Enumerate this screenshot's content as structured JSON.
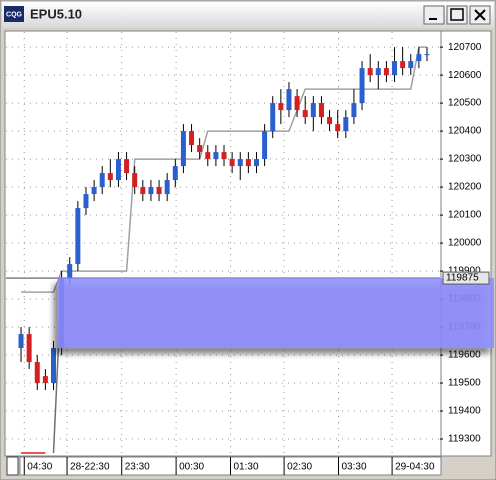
{
  "window": {
    "icon": "CQG"
  },
  "chart_data": {
    "type": "candlestick",
    "title": "EPU5.10",
    "up_color": "#2a5fd0",
    "down_color": "#d42020",
    "open": [
      119625,
      119675,
      119575,
      119525,
      119500,
      119625,
      119875,
      119925,
      120125,
      120175,
      120200,
      120250,
      120225,
      120300,
      120250,
      120200,
      120175,
      120200,
      120175,
      120225,
      120275,
      120400,
      120350,
      120325,
      120300,
      120325,
      120300,
      120275,
      120300,
      120275,
      120300,
      120400,
      120500,
      120475,
      120525,
      120475,
      120450,
      120500,
      120450,
      120425,
      120400,
      120450,
      120500,
      120625,
      120600,
      120625,
      120600,
      120650,
      120625,
      120650,
      120675
    ],
    "high": [
      119700,
      119700,
      119600,
      119550,
      119650,
      119900,
      119950,
      120150,
      120200,
      120225,
      120275,
      120300,
      120325,
      120325,
      120275,
      120225,
      120225,
      120225,
      120250,
      120300,
      120425,
      120425,
      120375,
      120350,
      120350,
      120350,
      120325,
      120325,
      120325,
      120325,
      120425,
      120525,
      120550,
      120575,
      120550,
      120525,
      120525,
      120525,
      120475,
      120475,
      120475,
      120550,
      120650,
      120675,
      120650,
      120650,
      120700,
      120700,
      120675,
      120700,
      120700
    ],
    "low": [
      119575,
      119550,
      119475,
      119475,
      119475,
      119600,
      119850,
      119900,
      120100,
      120150,
      120175,
      120200,
      120200,
      120225,
      120175,
      120150,
      120150,
      120150,
      120150,
      120200,
      120250,
      120325,
      120300,
      120275,
      120275,
      120275,
      120250,
      120225,
      120250,
      120250,
      120275,
      120375,
      120425,
      120450,
      120450,
      120425,
      120400,
      120425,
      120400,
      120375,
      120375,
      120425,
      120475,
      120575,
      120550,
      120575,
      120575,
      120600,
      120600,
      120625,
      120650
    ],
    "close": [
      119675,
      119575,
      119500,
      119500,
      119625,
      119875,
      119925,
      120125,
      120175,
      120200,
      120250,
      120225,
      120300,
      120250,
      120200,
      120175,
      120200,
      120175,
      120225,
      120275,
      120400,
      120350,
      120325,
      120300,
      120325,
      120300,
      120275,
      120300,
      120275,
      120300,
      120400,
      120500,
      120475,
      120550,
      120475,
      120450,
      120500,
      120450,
      120425,
      120400,
      120450,
      120500,
      120625,
      120600,
      120625,
      120600,
      120650,
      120625,
      120650,
      120675,
      120675
    ],
    "lines": [
      {
        "color": "#a0a0a0",
        "values": [
          119825,
          119825,
          119825,
          119825,
          119825,
          119900,
          119900,
          119900,
          119900,
          119900,
          119900,
          119900,
          119900,
          119900,
          120300,
          120300,
          120300,
          120300,
          120300,
          120300,
          120300,
          120300,
          120300,
          120400,
          120400,
          120400,
          120400,
          120400,
          120400,
          120400,
          120400,
          120400,
          120400,
          120400,
          120475,
          120550,
          120550,
          120550,
          120550,
          120550,
          120550,
          120550,
          120550,
          120550,
          120550,
          120550,
          120550,
          120550,
          120550,
          120700,
          120700
        ]
      },
      {
        "color": "#707070",
        "values": [
          null,
          null,
          null,
          null,
          119250,
          119875,
          null,
          null,
          null,
          null,
          null,
          null,
          null,
          null,
          null,
          null,
          null,
          null,
          null,
          null,
          null,
          null,
          null,
          null,
          null,
          null,
          null,
          null,
          null,
          null,
          null,
          null,
          null,
          null,
          null,
          null,
          null,
          null,
          null,
          null,
          null,
          null,
          null,
          null,
          null,
          null,
          null,
          null,
          null,
          null,
          null
        ]
      },
      {
        "color": "#e02020",
        "values": [
          119250,
          119250,
          119250,
          119250,
          null,
          null,
          null,
          null,
          null,
          null,
          null,
          null,
          null,
          null,
          null,
          null,
          null,
          null,
          null,
          null,
          null,
          null,
          null,
          null,
          null,
          null,
          null,
          null,
          null,
          null,
          null,
          null,
          null,
          null,
          null,
          null,
          null,
          null,
          null,
          null,
          null,
          null,
          null,
          null,
          null,
          null,
          null,
          null,
          null,
          null,
          null
        ]
      }
    ],
    "reference_line": 119875,
    "zone": {
      "from": 119875,
      "to": 119625,
      "color": "#8c8cff"
    },
    "xlim": [
      -1.85,
      51.6
    ],
    "ylim": [
      119243,
      120754
    ],
    "yticks": [
      119300,
      119400,
      119500,
      119600,
      119700,
      119800,
      119900,
      120000,
      120100,
      120200,
      120300,
      120400,
      120500,
      120600,
      120700
    ],
    "xticks": [
      {
        "value": 0.4,
        "label": "04:30"
      },
      {
        "value": 5.67,
        "label": "28-22:30"
      },
      {
        "value": 12.4,
        "label": "23:30"
      },
      {
        "value": 19.1,
        "label": "00:30"
      },
      {
        "value": 25.8,
        "label": "01:30"
      },
      {
        "value": 32.4,
        "label": "02:30"
      },
      {
        "value": 39.1,
        "label": "03:30"
      },
      {
        "value": 45.7,
        "label": "29-04:30"
      }
    ],
    "grid": true
  }
}
